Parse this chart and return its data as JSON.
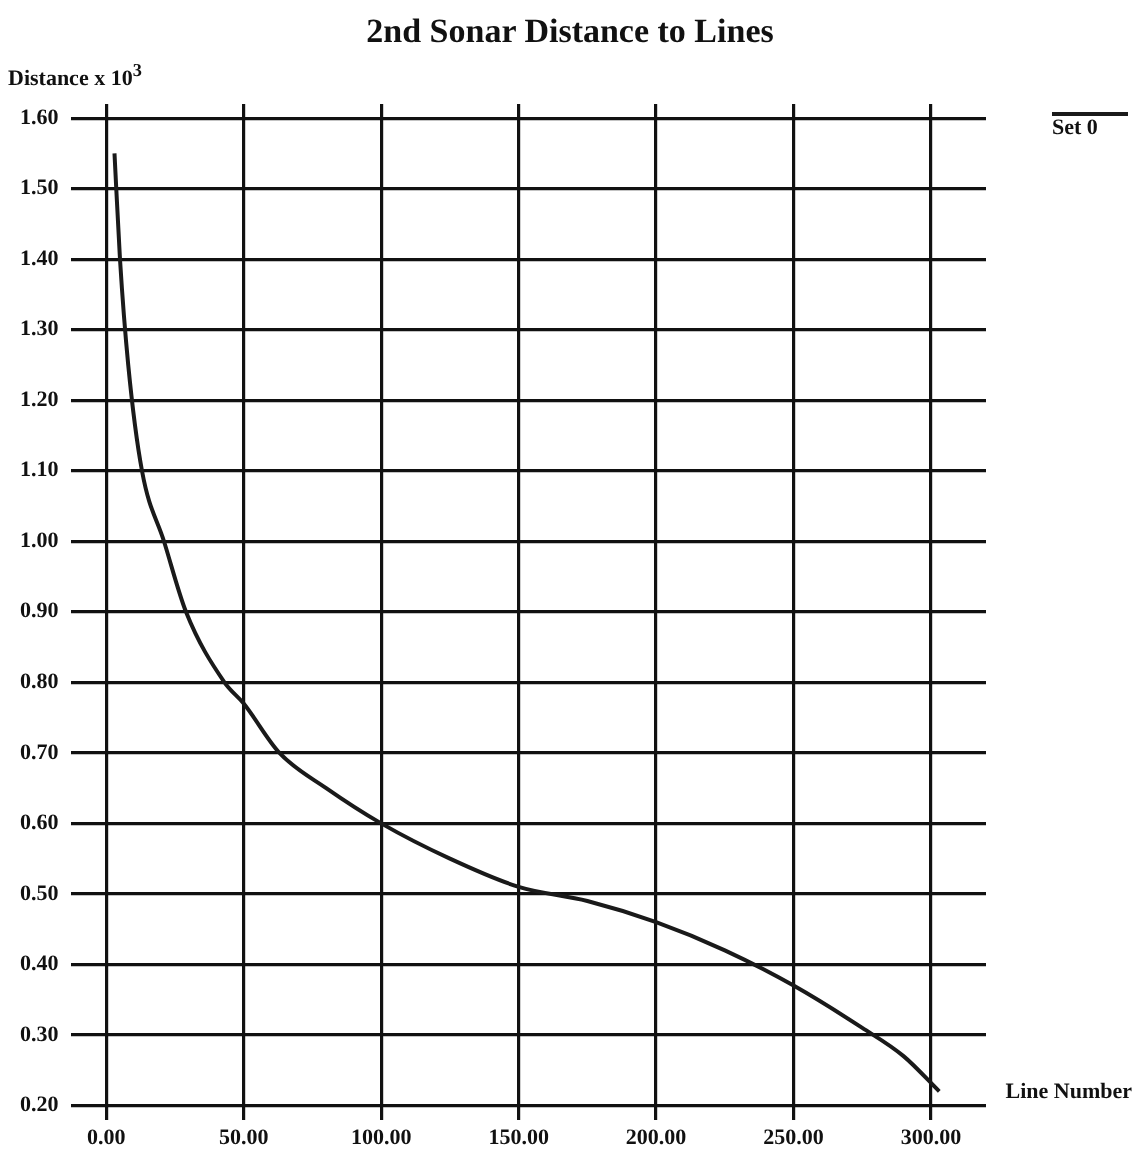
{
  "chart_data": {
    "type": "line",
    "title": "2nd Sonar Distance to Lines",
    "xlabel": "Line Number",
    "ylabel": "Distance x 10$^{3}$",
    "legend": "top right",
    "grid": true,
    "marker": "none",
    "line_style": "solid",
    "xlim": [
      -13,
      320
    ],
    "xticks": [
      {
        "value": 0,
        "label": "0.00"
      },
      {
        "value": 50,
        "label": "50.00"
      },
      {
        "value": 100,
        "label": "100.00"
      },
      {
        "value": 150,
        "label": "150.00"
      },
      {
        "value": 200,
        "label": "200.00"
      },
      {
        "value": 250,
        "label": "250.00"
      },
      {
        "value": 300,
        "label": "300.00"
      }
    ],
    "ylim": [
      0.18,
      1.62
    ],
    "yticks": [
      {
        "value": 0.2,
        "label": "0.20"
      },
      {
        "value": 0.3,
        "label": "0.30"
      },
      {
        "value": 0.4,
        "label": "0.40"
      },
      {
        "value": 0.5,
        "label": "0.50"
      },
      {
        "value": 0.6,
        "label": "0.60"
      },
      {
        "value": 0.7,
        "label": "0.70"
      },
      {
        "value": 0.8,
        "label": "0.80"
      },
      {
        "value": 0.9,
        "label": "0.90"
      },
      {
        "value": 1.0,
        "label": "1.00"
      },
      {
        "value": 1.1,
        "label": "1.10"
      },
      {
        "value": 1.2,
        "label": "1.20"
      },
      {
        "value": 1.3,
        "label": "1.30"
      },
      {
        "value": 1.4,
        "label": "1.40"
      },
      {
        "value": 1.5,
        "label": "1.50"
      },
      {
        "value": 1.6,
        "label": "1.60"
      }
    ],
    "series": [
      {
        "name": "Set 0",
        "color": "#1a1a1a",
        "x": [
          3,
          5,
          8,
          13,
          21,
          29,
          43,
          50,
          63,
          80,
          100,
          125,
          150,
          175,
          200,
          225,
          250,
          275,
          290,
          303
        ],
        "values": [
          1.55,
          1.4,
          1.25,
          1.1,
          1.0,
          0.9,
          0.8,
          0.77,
          0.7,
          0.65,
          0.6,
          0.55,
          0.51,
          0.49,
          0.46,
          0.42,
          0.37,
          0.31,
          0.27,
          0.22
        ]
      }
    ]
  }
}
